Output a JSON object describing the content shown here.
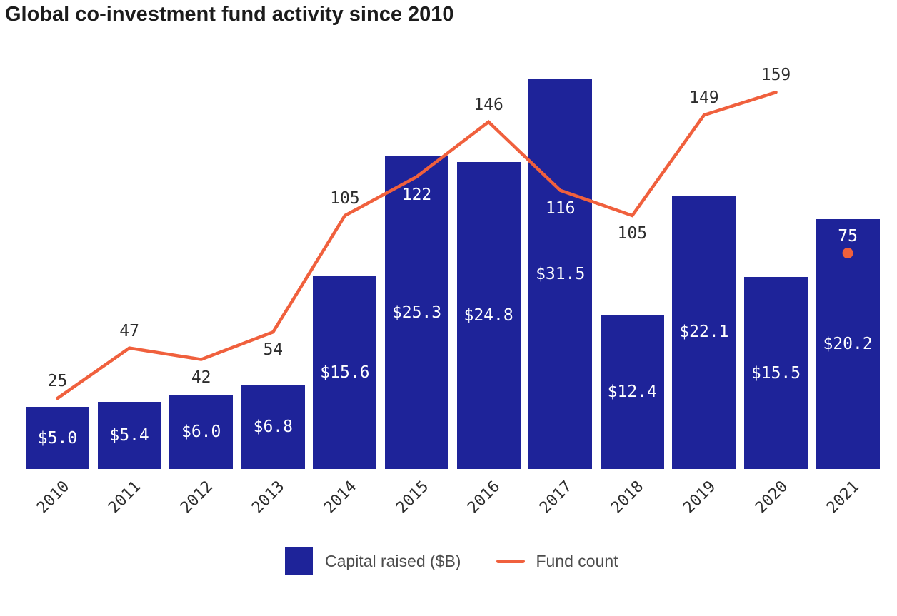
{
  "title": "Global co-investment fund activity since 2010",
  "legend": {
    "bar_label": "Capital raised ($B)",
    "line_label": "Fund count"
  },
  "colors": {
    "bar": "#1e2399",
    "line": "#f0603d",
    "dot": "#f0603d",
    "label_dark": "#2d2d2d",
    "label_light": "#ffffff",
    "title_text": "#1c1c1c",
    "legend_text": "#4c4c4c",
    "background": "#ffffff"
  },
  "chart_data": {
    "type": "bar",
    "subtype": "combo bar + line, dual implicit axes, no gridlines, no visible axis lines",
    "title": "Global co-investment fund activity since 2010",
    "xlabel": "",
    "ylabel": "",
    "grid": false,
    "legend_position": "bottom-center",
    "categories": [
      "2010",
      "2011",
      "2012",
      "2013",
      "2014",
      "2015",
      "2016",
      "2017",
      "2018",
      "2019",
      "2020",
      "2021"
    ],
    "series": [
      {
        "name": "Capital raised ($B)",
        "type": "bar",
        "values": [
          5.0,
          5.4,
          6.0,
          6.8,
          15.6,
          25.3,
          24.8,
          31.5,
          12.4,
          22.1,
          15.5,
          20.2
        ],
        "data_labels": [
          "$5.0",
          "$5.4",
          "$6.0",
          "$6.8",
          "$15.6",
          "$25.3",
          "$24.8",
          "$31.5",
          "$12.4",
          "$22.1",
          "$15.5",
          "$20.2"
        ],
        "axis_range": [
          0,
          31.5
        ]
      },
      {
        "name": "Fund count",
        "type": "line",
        "values": [
          25,
          47,
          42,
          54,
          105,
          122,
          146,
          116,
          105,
          149,
          159,
          75
        ],
        "data_labels": [
          "25",
          "47",
          "42",
          "54",
          "105",
          "122",
          "146",
          "116",
          "105",
          "149",
          "159",
          "75"
        ],
        "line_connects_years": "2010 through 2020",
        "final_point_style": "isolated dot inside 2021 bar"
      }
    ],
    "fund_label_positions": [
      "above",
      "above",
      "below",
      "below",
      "above",
      "below",
      "above",
      "below",
      "below",
      "above",
      "above",
      "above-dot"
    ]
  }
}
